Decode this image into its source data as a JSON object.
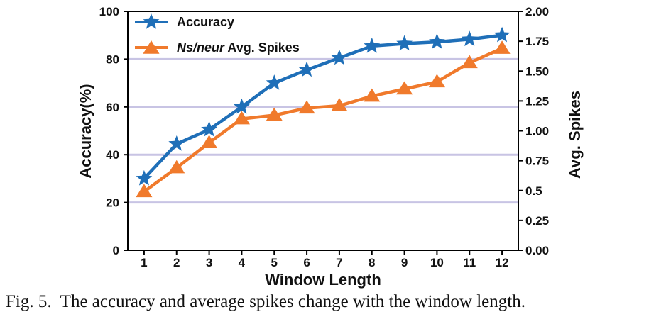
{
  "chart_data": {
    "type": "line",
    "x": [
      1,
      2,
      3,
      4,
      5,
      6,
      7,
      8,
      9,
      10,
      11,
      12
    ],
    "xlabel": "Window Length",
    "ylabel_left": "Accuracy(%)",
    "ylabel_right": "Avg. Spikes",
    "ylim_left": [
      0,
      100
    ],
    "ylim_right": [
      0,
      2.0
    ],
    "yticks_left": [
      "0",
      "20",
      "40",
      "60",
      "80",
      "100"
    ],
    "yticks_right": [
      "0.00",
      "0.25",
      "0.5",
      "0.75",
      "1.00",
      "1.25",
      "1.50",
      "1.75",
      "2.00"
    ],
    "grid": "horizontal",
    "legend_position": "top-left",
    "series": [
      {
        "name": "Accuracy",
        "axis": "left",
        "marker": "star",
        "color": "#1f6fb8",
        "values": [
          30,
          44.5,
          50.5,
          60,
          70,
          75.5,
          80.5,
          85.5,
          86.5,
          87.2,
          88.3,
          90
        ]
      },
      {
        "name_italic": "Ns/neur",
        "name_rest": " Avg. Spikes",
        "axis": "right",
        "marker": "triangle",
        "color": "#f07a2c",
        "values": [
          0.49,
          0.69,
          0.9,
          1.1,
          1.13,
          1.19,
          1.21,
          1.29,
          1.35,
          1.41,
          1.57,
          1.69
        ]
      }
    ],
    "gridline_color": "#c8c4e4"
  },
  "caption": {
    "label": "Fig. 5.",
    "text": "The accuracy and average spikes change with the window length."
  }
}
